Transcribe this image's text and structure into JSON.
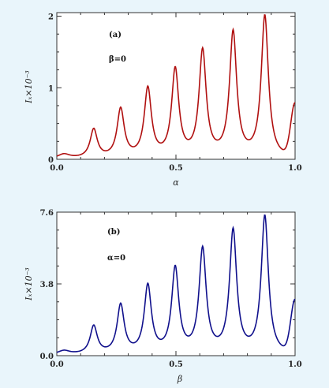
{
  "chart_data": [
    {
      "type": "line",
      "panel_label": "(a)",
      "annotation": "β=0",
      "xlabel": "α",
      "ylabel": "Iₓ×10⁻³",
      "xlim": [
        0,
        1
      ],
      "ylim": [
        0,
        2.05
      ],
      "xticks": [
        0.0,
        0.5,
        1.0
      ],
      "xtick_labels": [
        "0.0",
        "0.5",
        "1.0"
      ],
      "yticks": [
        0,
        1,
        2
      ],
      "ytick_labels": [
        "0",
        "1",
        "2"
      ],
      "grid": false,
      "color": "#b01010",
      "baseline": 0.0,
      "edge_start": 0.0,
      "edge_end": 0.82,
      "peaks": [
        {
          "x": 0.03,
          "y": 0.06
        },
        {
          "x": 0.155,
          "y": 0.4
        },
        {
          "x": 0.268,
          "y": 0.68
        },
        {
          "x": 0.382,
          "y": 0.96
        },
        {
          "x": 0.497,
          "y": 1.22
        },
        {
          "x": 0.612,
          "y": 1.48
        },
        {
          "x": 0.74,
          "y": 1.74
        },
        {
          "x": 0.873,
          "y": 1.98
        }
      ]
    },
    {
      "type": "line",
      "panel_label": "(b)",
      "annotation": "α=0",
      "xlabel": "β",
      "ylabel": "Iₓ×10⁻³",
      "xlim": [
        0,
        1
      ],
      "ylim": [
        0,
        7.6
      ],
      "xticks": [
        0.0,
        0.5,
        1.0
      ],
      "xtick_labels": [
        "0.0",
        "0.5",
        "1.0"
      ],
      "yticks": [
        0.0,
        3.8,
        7.6
      ],
      "ytick_labels": [
        "0.0",
        "3.8",
        "7.6"
      ],
      "grid": false,
      "color": "#10108c",
      "baseline": 0.02,
      "edge_start": 0.0,
      "edge_end": 3.1,
      "peaks": [
        {
          "x": 0.03,
          "y": 0.22
        },
        {
          "x": 0.155,
          "y": 1.5
        },
        {
          "x": 0.268,
          "y": 2.6
        },
        {
          "x": 0.382,
          "y": 3.6
        },
        {
          "x": 0.497,
          "y": 4.5
        },
        {
          "x": 0.612,
          "y": 5.5
        },
        {
          "x": 0.74,
          "y": 6.5
        },
        {
          "x": 0.873,
          "y": 7.3
        }
      ]
    }
  ]
}
